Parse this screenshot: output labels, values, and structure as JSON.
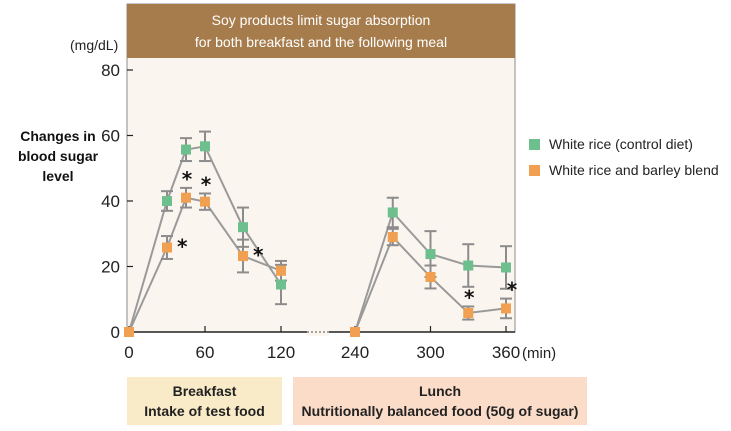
{
  "chart_data": {
    "type": "line",
    "title_line1": "Soy products limit sugar absorption",
    "title_line2": "for both breakfast and the following meal",
    "y_unit": "(mg/dL)",
    "ylabel_lines": [
      "Changes in",
      "blood sugar",
      "level"
    ],
    "ylim": [
      0,
      80
    ],
    "y_ticks": [
      0,
      20,
      40,
      60,
      80
    ],
    "x_ticks": [
      0,
      60,
      120,
      240,
      300,
      360
    ],
    "x_unit": "(min)",
    "x_break_between": [
      120,
      240
    ],
    "grid": false,
    "legend_position": "right",
    "series": [
      {
        "name": "White rice (control diet)",
        "color": "#6dbf8e",
        "segments": [
          [
            {
              "x": 0,
              "y": 0
            },
            {
              "x": 30,
              "y": 40,
              "err": 3
            },
            {
              "x": 45,
              "y": 55.7,
              "err": 3.5
            },
            {
              "x": 60,
              "y": 56.7,
              "err": 4.5
            },
            {
              "x": 90,
              "y": 32,
              "err": 6
            },
            {
              "x": 120,
              "y": 14.5,
              "err": 6
            }
          ],
          [
            {
              "x": 240,
              "y": 0
            },
            {
              "x": 270,
              "y": 36.5,
              "err": 4.5
            },
            {
              "x": 300,
              "y": 23.8,
              "err": 7
            },
            {
              "x": 330,
              "y": 20.3,
              "err": 6.5
            },
            {
              "x": 360,
              "y": 19.7,
              "err": 6.5
            }
          ]
        ]
      },
      {
        "name": "White rice and barley blend",
        "color": "#f0a050",
        "segments": [
          [
            {
              "x": 0,
              "y": 0
            },
            {
              "x": 30,
              "y": 25.8,
              "err": 3.5,
              "sig": true
            },
            {
              "x": 45,
              "y": 41,
              "err": 3,
              "sig": true
            },
            {
              "x": 60,
              "y": 39.8,
              "err": 2.5,
              "sig": true
            },
            {
              "x": 90,
              "y": 23.2,
              "err": 5,
              "sig": true
            },
            {
              "x": 120,
              "y": 18.7,
              "err": 3
            }
          ],
          [
            {
              "x": 240,
              "y": 0
            },
            {
              "x": 270,
              "y": 29,
              "err": 2.5
            },
            {
              "x": 300,
              "y": 16.8,
              "err": 3.5
            },
            {
              "x": 330,
              "y": 5.8,
              "err": 2,
              "sig": true
            },
            {
              "x": 360,
              "y": 7.2,
              "err": 3,
              "sig": true
            }
          ]
        ]
      }
    ],
    "significance_marker": "*"
  },
  "meals": [
    {
      "title": "Breakfast",
      "subtitle": "Intake of test food",
      "color": "#faebc8"
    },
    {
      "title": "Lunch",
      "subtitle": "Nutritionally balanced food (50g of sugar)",
      "color": "#fbdcc8"
    }
  ],
  "colors": {
    "banner": "#a67c4c",
    "plot_bg": "#fbf5ef",
    "errorbar": "#8c8c8c"
  }
}
